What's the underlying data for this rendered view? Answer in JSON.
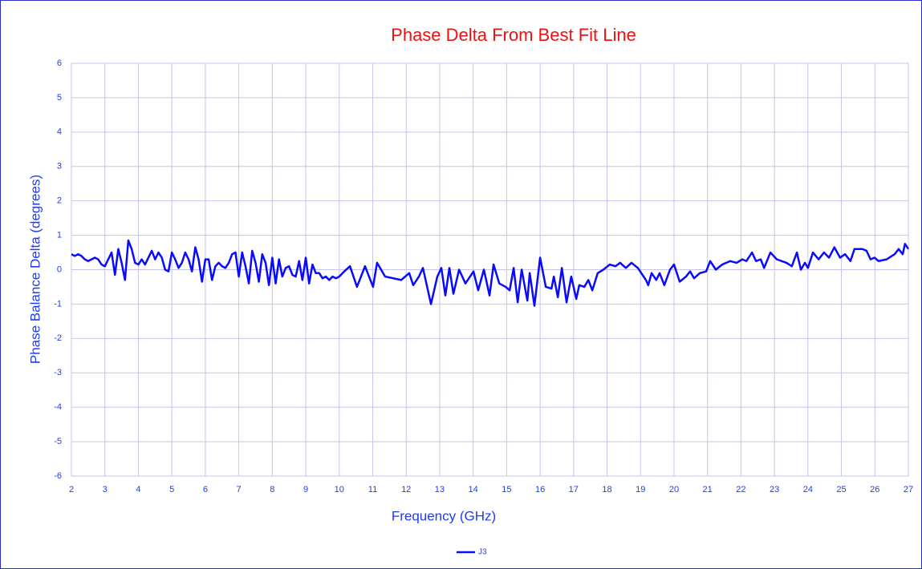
{
  "chart_data": {
    "type": "line",
    "title": "Phase Delta From Best Fit Line",
    "x_label": "Frequency (GHz)",
    "y_label": "Phase Balance Delta (degrees)",
    "x": [
      2.0,
      2.1,
      2.2,
      2.3,
      2.4,
      2.5,
      2.6,
      2.7,
      2.8,
      2.9,
      3.0,
      3.1,
      3.2,
      3.3,
      3.4,
      3.5,
      3.6,
      3.7,
      3.8,
      3.9,
      4.0,
      4.1,
      4.2,
      4.3,
      4.4,
      4.5,
      4.6,
      4.7,
      4.8,
      4.9,
      5.0,
      5.1,
      5.2,
      5.3,
      5.4,
      5.5,
      5.6,
      5.7,
      5.8,
      5.9,
      6.0,
      6.1,
      6.2,
      6.3,
      6.4,
      6.5,
      6.6,
      6.7,
      6.8,
      6.9,
      7.0,
      7.1,
      7.2,
      7.3,
      7.4,
      7.5,
      7.6,
      7.7,
      7.8,
      7.9,
      8.0,
      8.1,
      8.2,
      8.3,
      8.4,
      8.5,
      8.6,
      8.7,
      8.8,
      8.9,
      9.0,
      9.1,
      9.2,
      9.3,
      9.4,
      9.5,
      9.6,
      9.7,
      9.8,
      9.9,
      10.0,
      10.15,
      10.32,
      10.53,
      10.77,
      11.01,
      11.13,
      11.37,
      11.85,
      12.09,
      12.21,
      12.38,
      12.5,
      12.74,
      12.93,
      13.05,
      13.17,
      13.29,
      13.41,
      13.58,
      13.77,
      14.01,
      14.15,
      14.32,
      14.49,
      14.61,
      14.78,
      14.97,
      15.09,
      15.21,
      15.33,
      15.45,
      15.62,
      15.69,
      15.83,
      16.0,
      16.17,
      16.34,
      16.41,
      16.53,
      16.65,
      16.79,
      16.93,
      17.08,
      17.17,
      17.32,
      17.44,
      17.56,
      17.72,
      17.89,
      18.08,
      18.25,
      18.39,
      18.56,
      18.73,
      18.92,
      19.16,
      19.23,
      19.33,
      19.47,
      19.57,
      19.71,
      19.88,
      20.0,
      20.17,
      20.36,
      20.48,
      20.6,
      20.77,
      20.96,
      21.08,
      21.25,
      21.44,
      21.68,
      21.87,
      22.04,
      22.16,
      22.33,
      22.45,
      22.59,
      22.69,
      22.88,
      23.07,
      23.36,
      23.52,
      23.67,
      23.79,
      23.91,
      24.0,
      24.15,
      24.32,
      24.48,
      24.63,
      24.79,
      24.96,
      25.11,
      25.27,
      25.39,
      25.63,
      25.75,
      25.87,
      25.99,
      26.11,
      26.35,
      26.59,
      26.71,
      26.83,
      26.9,
      27.0
    ],
    "series": [
      {
        "name": "J3",
        "color": "#0a0aff",
        "values": [
          0.45,
          0.4,
          0.45,
          0.4,
          0.3,
          0.25,
          0.3,
          0.35,
          0.3,
          0.15,
          0.1,
          0.3,
          0.5,
          -0.15,
          0.6,
          0.2,
          -0.3,
          0.85,
          0.6,
          0.2,
          0.15,
          0.3,
          0.15,
          0.35,
          0.55,
          0.3,
          0.5,
          0.35,
          0,
          -0.05,
          0.5,
          0.3,
          0.05,
          0.2,
          0.5,
          0.3,
          -0.05,
          0.65,
          0.3,
          -0.35,
          0.3,
          0.3,
          -0.3,
          0.1,
          0.2,
          0.1,
          0.05,
          0.2,
          0.45,
          0.5,
          -0.2,
          0.5,
          0.1,
          -0.4,
          0.55,
          0.2,
          -0.35,
          0.45,
          0.2,
          -0.45,
          0.35,
          -0.4,
          0.3,
          -0.2,
          0.05,
          0.1,
          -0.15,
          -0.2,
          0.25,
          -0.3,
          0.35,
          -0.4,
          0.15,
          -0.1,
          -0.1,
          -0.25,
          -0.2,
          -0.3,
          -0.2,
          -0.25,
          -0.2,
          -0.05,
          0.1,
          -0.5,
          0.1,
          -0.5,
          0.2,
          -0.2,
          -0.3,
          -0.1,
          -0.45,
          -0.2,
          0.05,
          -1.0,
          -0.2,
          0.05,
          -0.75,
          0.05,
          -0.7,
          0.0,
          -0.4,
          -0.05,
          -0.6,
          0.0,
          -0.75,
          0.15,
          -0.4,
          -0.5,
          -0.6,
          0.05,
          -0.95,
          0.0,
          -0.9,
          -0.1,
          -1.05,
          0.35,
          -0.5,
          -0.55,
          -0.2,
          -0.8,
          0.05,
          -0.95,
          -0.2,
          -0.85,
          -0.45,
          -0.5,
          -0.3,
          -0.6,
          -0.1,
          0.0,
          0.15,
          0.1,
          0.2,
          0.05,
          0.2,
          0.05,
          -0.3,
          -0.45,
          -0.1,
          -0.3,
          -0.1,
          -0.45,
          0.0,
          0.15,
          -0.35,
          -0.2,
          -0.05,
          -0.25,
          -0.1,
          -0.05,
          0.25,
          0.0,
          0.15,
          0.25,
          0.2,
          0.3,
          0.25,
          0.5,
          0.25,
          0.3,
          0.05,
          0.5,
          0.3,
          0.2,
          0.1,
          0.5,
          0.0,
          0.2,
          0.05,
          0.5,
          0.3,
          0.5,
          0.35,
          0.65,
          0.35,
          0.45,
          0.25,
          0.6,
          0.6,
          0.55,
          0.3,
          0.35,
          0.25,
          0.3,
          0.45,
          0.6,
          0.45,
          0.75,
          0.6
        ]
      }
    ],
    "xlim": [
      2,
      27
    ],
    "ylim": [
      -6,
      6
    ],
    "xticks": [
      2,
      3,
      4,
      5,
      6,
      7,
      8,
      9,
      10,
      11,
      12,
      13,
      14,
      15,
      16,
      17,
      18,
      19,
      20,
      21,
      22,
      23,
      24,
      25,
      26,
      27
    ],
    "yticks": [
      -6,
      -5,
      -4,
      -3,
      -2,
      -1,
      0,
      1,
      2,
      3,
      4,
      5,
      6
    ],
    "grid": true,
    "legend": "bottom"
  }
}
